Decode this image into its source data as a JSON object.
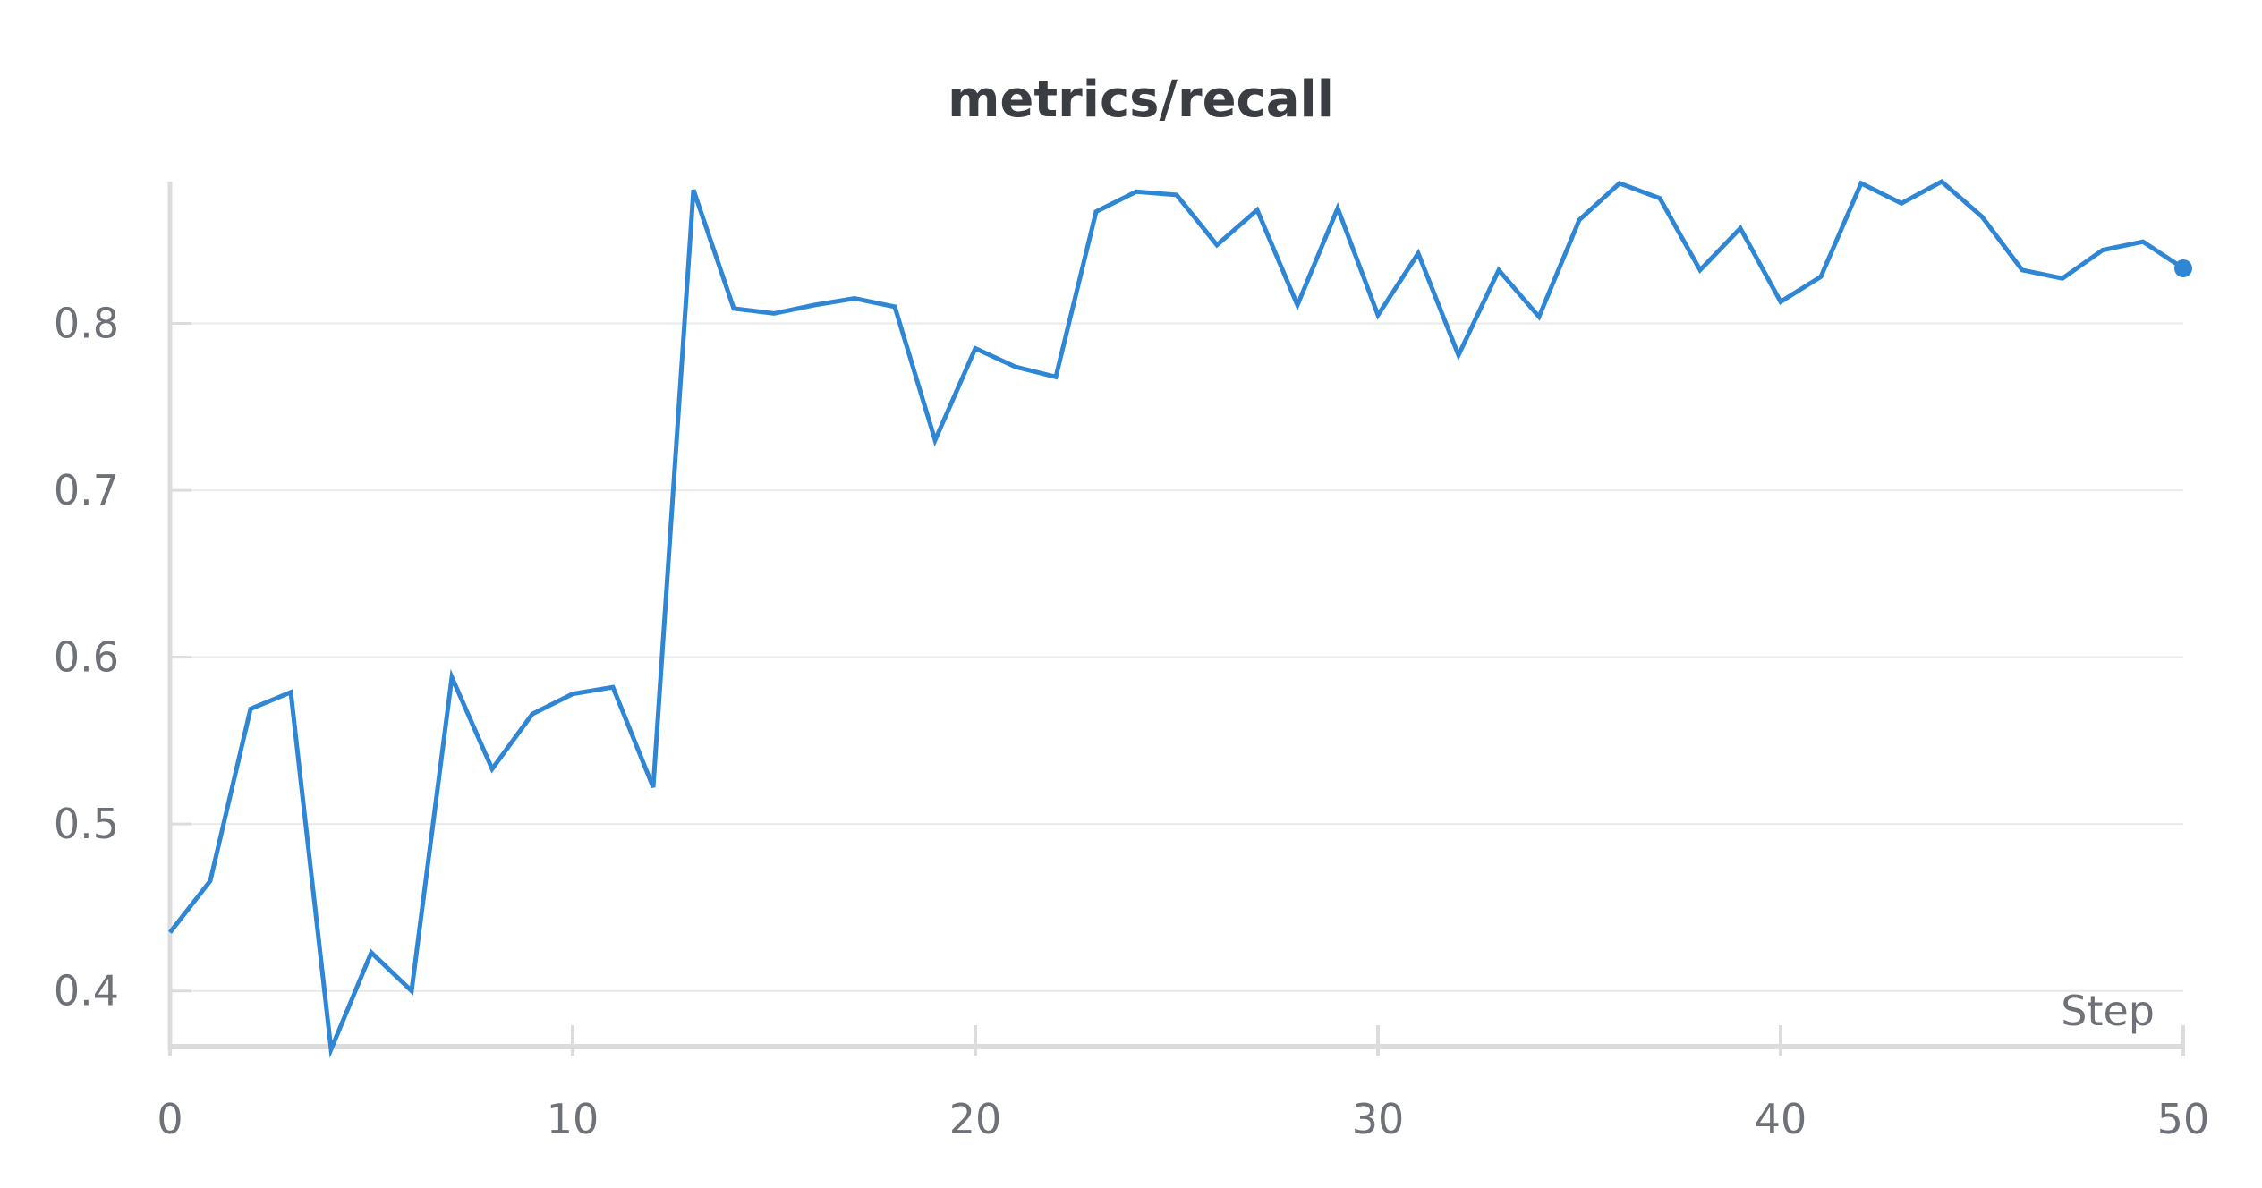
{
  "chart_data": {
    "type": "line",
    "title": "metrics/recall",
    "xlabel": "Step",
    "ylabel": "",
    "xlim": [
      0,
      50
    ],
    "ylim": [
      0.365,
      0.885
    ],
    "xticks": [
      0,
      10,
      20,
      30,
      40,
      50
    ],
    "xtick_labels": [
      "0",
      "10",
      "20",
      "30",
      "40",
      "50"
    ],
    "yticks": [
      0.4,
      0.5,
      0.6,
      0.7,
      0.8
    ],
    "ytick_labels": [
      "0.4",
      "0.5",
      "0.6",
      "0.7",
      "0.8"
    ],
    "grid": true,
    "legend": "none",
    "colors": {
      "line": "#2f86d4",
      "grid": "#e9e9e9",
      "axis": "#dcdcdc",
      "tick_text": "#6e7178",
      "title": "#3a3d42"
    },
    "series": [
      {
        "x": [
          0,
          1,
          2,
          3,
          4,
          5,
          6,
          7,
          8,
          9,
          10,
          11,
          12,
          13,
          14,
          15,
          16,
          17,
          18,
          19,
          20,
          21,
          22,
          23,
          24,
          25,
          26,
          27,
          28,
          29,
          30,
          31,
          32,
          33,
          34,
          35,
          36,
          37,
          38,
          39,
          40,
          41,
          42,
          43,
          44,
          45,
          46,
          47,
          48,
          49,
          50
        ],
        "values": [
          0.435,
          0.466,
          0.569,
          0.579,
          0.365,
          0.423,
          0.4,
          0.588,
          0.533,
          0.566,
          0.578,
          0.582,
          0.522,
          0.88,
          0.809,
          0.806,
          0.811,
          0.815,
          0.81,
          0.73,
          0.785,
          0.774,
          0.768,
          0.867,
          0.879,
          0.877,
          0.847,
          0.868,
          0.811,
          0.869,
          0.805,
          0.842,
          0.781,
          0.832,
          0.804,
          0.862,
          0.884,
          0.875,
          0.832,
          0.857,
          0.813,
          0.828,
          0.884,
          0.872,
          0.885,
          0.864,
          0.832,
          0.827,
          0.844,
          0.849,
          0.833
        ]
      }
    ]
  }
}
